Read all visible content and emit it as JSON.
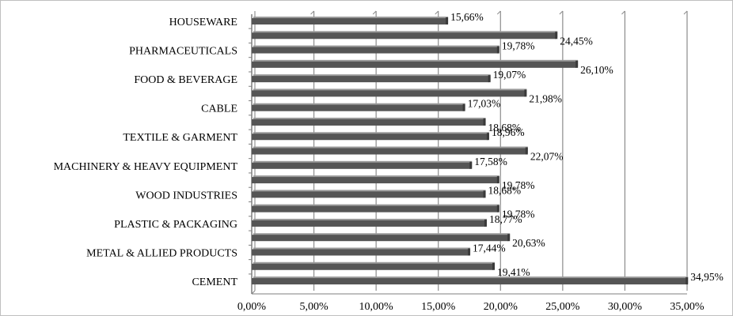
{
  "chart_data": {
    "type": "bar",
    "orientation": "horizontal",
    "title": "",
    "xlabel": "",
    "ylabel": "",
    "xlim": [
      0,
      35
    ],
    "x_ticks": [
      0,
      5,
      10,
      15,
      20,
      25,
      30,
      35
    ],
    "x_tick_labels": [
      "0,00%",
      "5,00%",
      "10,00%",
      "15,00%",
      "20,00%",
      "25,00%",
      "30,00%",
      "35,00%"
    ],
    "grid": "vertical gridlines",
    "legend": "none",
    "bar_color": "#555555",
    "categories": [
      "HOUSEWARE",
      "",
      "PHARMACEUTICALS",
      "",
      "FOOD & BEVERAGE",
      "",
      "CABLE",
      "",
      "TEXTILE & GARMENT",
      "",
      "MACHINERY & HEAVY EQUIPMENT",
      "",
      "WOOD INDUSTRIES",
      "",
      "PLASTIC & PACKAGING",
      "",
      "METAL & ALLIED PRODUCTS",
      "",
      "CEMENT"
    ],
    "values": [
      15.66,
      24.45,
      19.78,
      26.1,
      19.07,
      21.98,
      17.03,
      18.68,
      18.96,
      22.07,
      17.58,
      19.78,
      18.68,
      19.78,
      18.77,
      20.63,
      17.44,
      19.41,
      34.95
    ],
    "data_labels": [
      "15,66%",
      "24,45%",
      "19,78%",
      "26,10%",
      "19,07%",
      "21,98%",
      "17,03%",
      "18,68%",
      "18,96%",
      "22,07%",
      "17,58%",
      "19,78%",
      "18,68%",
      "19,78%",
      "18,77%",
      "20,63%",
      "17,44%",
      "19,41%",
      "34,95%"
    ]
  }
}
